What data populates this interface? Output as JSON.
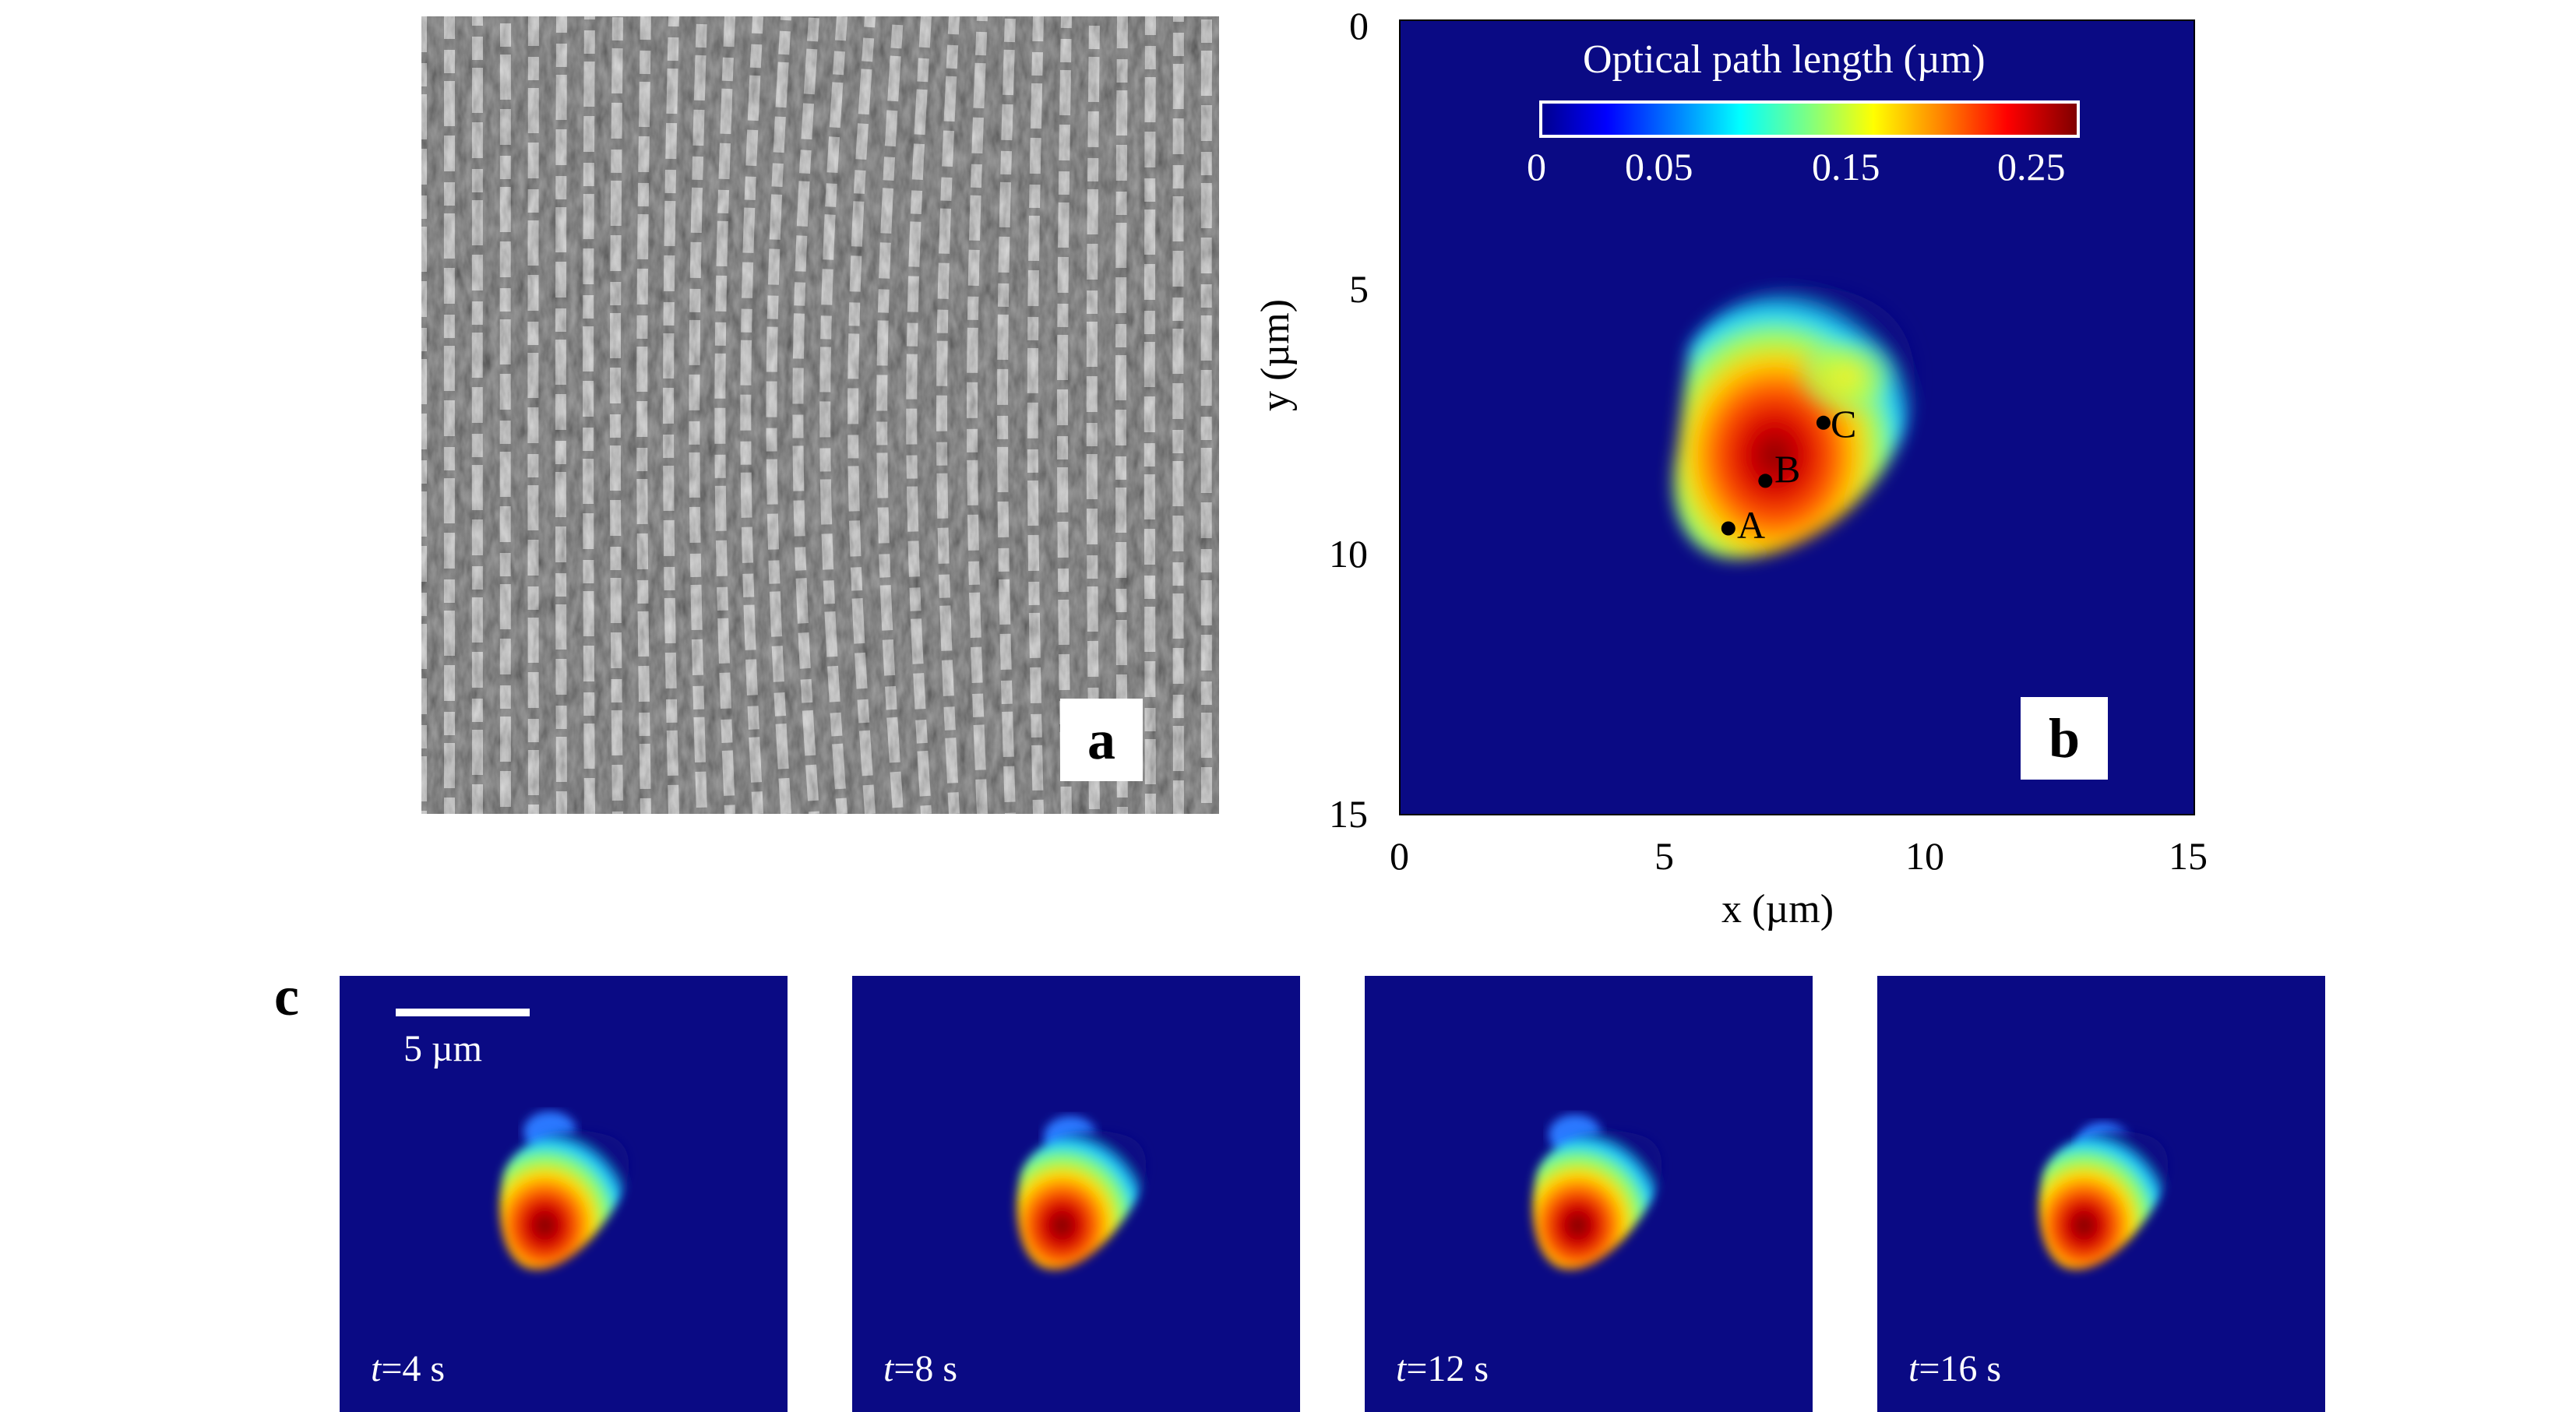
{
  "panel_a": {
    "letter": "a"
  },
  "panel_b": {
    "letter": "b",
    "colorbar": {
      "title": "Optical path length (µm)",
      "ticks": [
        "0",
        "0.05",
        "0.15",
        "0.25"
      ],
      "colormap": "jet"
    },
    "x_axis": {
      "label": "x (µm)",
      "ticks": [
        "0",
        "5",
        "10",
        "15"
      ]
    },
    "y_axis": {
      "label": "y (µm)",
      "ticks": [
        "0",
        "5",
        "10",
        "15"
      ]
    },
    "points": [
      {
        "label": "A",
        "x": 6.2,
        "y": 9.6
      },
      {
        "label": "B",
        "x": 6.9,
        "y": 8.7
      },
      {
        "label": "C",
        "x": 8.0,
        "y": 7.6
      }
    ],
    "background_color": "#0a0a84"
  },
  "panel_c": {
    "letter": "c",
    "scalebar_label": "5 µm",
    "frames": [
      {
        "time_var": "t",
        "time_value": "=4 s"
      },
      {
        "time_var": "t",
        "time_value": "=8 s"
      },
      {
        "time_var": "t",
        "time_value": "=12 s"
      },
      {
        "time_var": "t",
        "time_value": "=16 s"
      }
    ]
  }
}
